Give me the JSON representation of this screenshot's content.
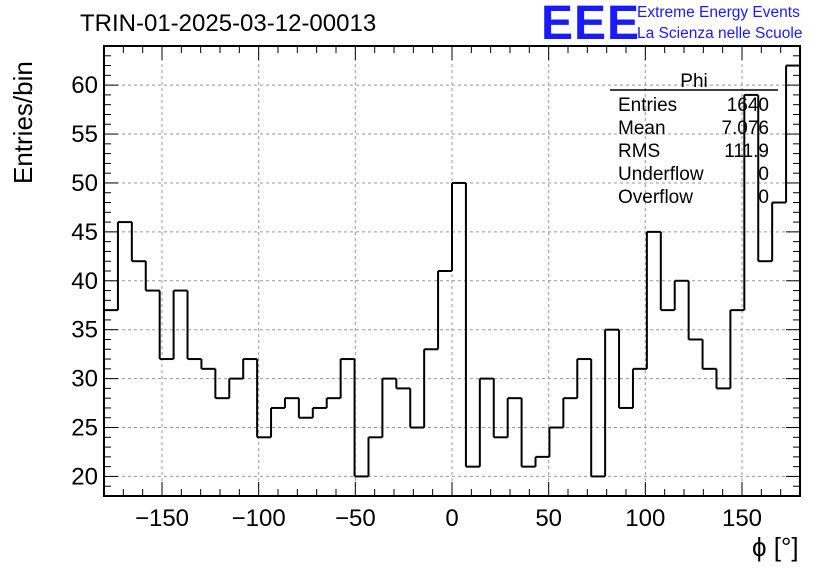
{
  "header": {
    "run_title": "TRIN-01-2025-03-12-00013",
    "logo_text": "EEE",
    "logo_line1": "Extreme Energy Events",
    "logo_line2": "La Scienza nelle Scuole"
  },
  "stats_box": {
    "title": "Phi",
    "rows": [
      {
        "label": "Entries",
        "value": "1640"
      },
      {
        "label": "Mean",
        "value": "7.076"
      },
      {
        "label": "RMS",
        "value": "111.9"
      },
      {
        "label": "Underflow",
        "value": "0"
      },
      {
        "label": "Overflow",
        "value": "0"
      }
    ]
  },
  "colors": {
    "line": "#000000",
    "grid": "#999999",
    "logo": "#1a1aff"
  },
  "chart_data": {
    "type": "histogram",
    "title": "TRIN-01-2025-03-12-00013",
    "xlabel": "ϕ [°]",
    "ylabel": "Entries/bin",
    "xlim": [
      -180,
      180
    ],
    "ylim": [
      18,
      64
    ],
    "xticks": [
      -150,
      -100,
      -50,
      0,
      50,
      100,
      150
    ],
    "yticks": [
      20,
      25,
      30,
      35,
      40,
      45,
      50,
      55,
      60
    ],
    "grid": true,
    "bin_width": 7.2,
    "bin_start": -180,
    "bin_end": 180,
    "values": [
      37,
      46,
      42,
      39,
      32,
      39,
      32,
      31,
      28,
      30,
      32,
      24,
      27,
      28,
      26,
      27,
      28,
      32,
      20,
      24,
      30,
      29,
      25,
      33,
      41,
      50,
      21,
      30,
      24,
      28,
      21,
      22,
      25,
      28,
      32,
      20,
      35,
      27,
      31,
      45,
      37,
      40,
      34,
      31,
      29,
      37,
      59,
      42,
      48,
      62
    ]
  }
}
